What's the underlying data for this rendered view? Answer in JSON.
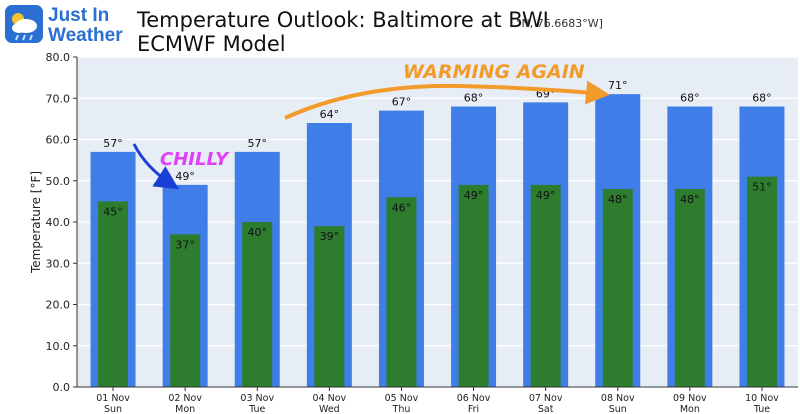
{
  "logo": {
    "line1": "Just In",
    "line2": "Weather"
  },
  "header": {
    "title_line1": "Temperature Outlook: Baltimore at BWI",
    "title_line2": "ECMWF Model",
    "coords": "°N, 76.6683°W]"
  },
  "annotations": {
    "chilly": "CHILLY",
    "warming": "WARMING AGAIN"
  },
  "colors": {
    "high_bar": "#3f7ee8",
    "low_bar": "#2e7d2e",
    "chilly": "#e040fb",
    "warming": "#f29b2b",
    "arrow_blue": "#1a3fd6",
    "plot_bg": "#e7edf5"
  },
  "chart_data": {
    "type": "bar",
    "ylabel": "Temperature [°F]",
    "ylim": [
      0,
      80
    ],
    "yticks": [
      "0.0",
      "10.0",
      "20.0",
      "30.0",
      "40.0",
      "50.0",
      "60.0",
      "70.0",
      "80.0"
    ],
    "categories": [
      {
        "date": "01 Nov",
        "day": "Sun"
      },
      {
        "date": "02 Nov",
        "day": "Mon"
      },
      {
        "date": "03 Nov",
        "day": "Tue"
      },
      {
        "date": "04 Nov",
        "day": "Wed"
      },
      {
        "date": "05 Nov",
        "day": "Thu"
      },
      {
        "date": "06 Nov",
        "day": "Fri"
      },
      {
        "date": "07 Nov",
        "day": "Sat"
      },
      {
        "date": "08 Nov",
        "day": "Sun"
      },
      {
        "date": "09 Nov",
        "day": "Mon"
      },
      {
        "date": "10 Nov",
        "day": "Tue"
      }
    ],
    "series": [
      {
        "values": [
          57,
          49,
          57,
          64,
          67,
          68,
          69,
          71,
          68,
          68
        ]
      },
      {
        "values": [
          45,
          37,
          40,
          39,
          46,
          49,
          49,
          48,
          48,
          51
        ]
      }
    ],
    "high_labels": [
      "57°",
      "49°",
      "57°",
      "64°",
      "67°",
      "68°",
      "69°",
      "71°",
      "68°",
      "68°"
    ],
    "low_labels": [
      "45°",
      "37°",
      "40°",
      "39°",
      "46°",
      "49°",
      "49°",
      "48°",
      "48°",
      "51°"
    ],
    "grid": true
  }
}
